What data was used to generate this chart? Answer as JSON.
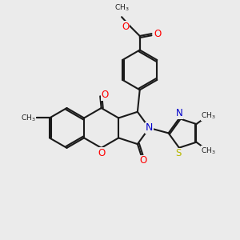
{
  "bg_color": "#ebebeb",
  "bond_color": "#1a1a1a",
  "bond_width": 1.5,
  "atom_colors": {
    "O": "#ff0000",
    "N": "#0000cc",
    "S": "#b8b800",
    "C": "#1a1a1a"
  }
}
